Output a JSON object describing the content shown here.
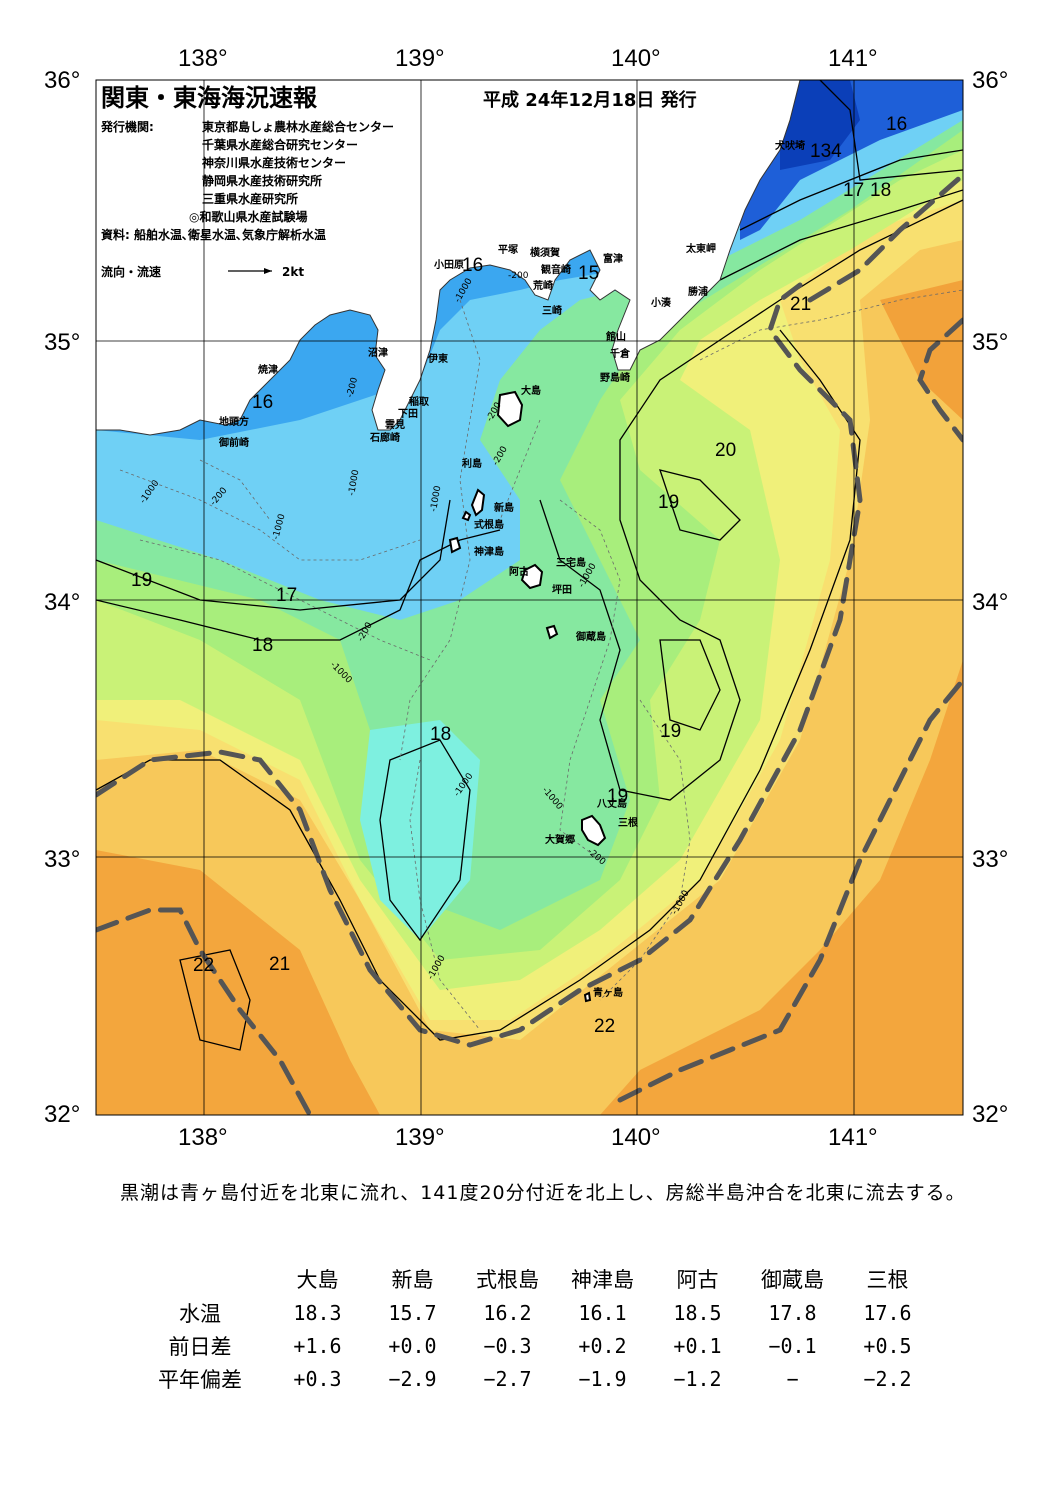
{
  "map": {
    "title": "関東・東海海況速報",
    "issue_date": "平成 24年12月18日 発行",
    "issuer_label": "発行機関:",
    "issuers": [
      "東京都島しょ農林水産総合センター",
      "千葉県水産総合研究センター",
      "神奈川県水産技術センター",
      "静岡県水産技術研究所",
      "三重県水産研究所",
      "◎和歌山県水産試験場"
    ],
    "source": "資料: 船舶水温､衛星水温､気象庁解析水温",
    "legend_label": "流向・流速",
    "legend_scale": "2kt",
    "longitude_labels": [
      "138°",
      "139°",
      "140°",
      "141°"
    ],
    "latitude_labels": [
      "36°",
      "35°",
      "34°",
      "33°",
      "32°"
    ],
    "isotherm_labels": [
      "16",
      "134",
      "17",
      "18",
      "16",
      "15",
      "21",
      "20",
      "19",
      "19",
      "17",
      "18",
      "18",
      "19",
      "19",
      "22",
      "21",
      "22",
      "16"
    ],
    "depth_labels": [
      "-1000",
      "-200",
      "-200",
      "-1000",
      "-200",
      "-1000",
      "-1000",
      "-200",
      "-1000",
      "-200",
      "-1000",
      "-200",
      "-1000",
      "-1000",
      "-200",
      "-1000",
      "-1000",
      "-1000"
    ],
    "places": {
      "inubozaki": "犬吠埼",
      "taitomisaki": "太東岬",
      "katsuura": "勝浦",
      "kominato": "小湊",
      "tomitsu": "富津",
      "kannonzaki": "観音崎",
      "yokosuka": "横須賀",
      "hiratsuka": "平塚",
      "odawara": "小田原",
      "arasaki": "荒崎",
      "misaki": "三崎",
      "tateyama": "館山",
      "chikura": "千倉",
      "nojimazaki": "野島崎",
      "numazu": "沼津",
      "ito": "伊東",
      "inatori": "稲取",
      "shimoda": "下田",
      "kumomi": "雲見",
      "irozaki": "石廊崎",
      "yaizu": "焼津",
      "jitokata": "地頭方",
      "omaezaki": "御前崎",
      "oshima": "大島",
      "toshima": "利島",
      "niijima": "新島",
      "shikinejima": "式根島",
      "kozushima": "神津島",
      "miyakejima": "三宅島",
      "ako": "阿古",
      "tsubota": "坪田",
      "mikurajima": "御蔵島",
      "hachijojima": "八丈島",
      "mitsune": "三根",
      "okago": "大賀郷",
      "aogashima": "青ヶ島"
    }
  },
  "summary": "黒潮は青ヶ島付近を北東に流れ、141度20分付近を北上し、房総半島沖合を北東に流去する。",
  "table": {
    "columns": [
      "大島",
      "新島",
      "式根島",
      "神津島",
      "阿古",
      "御蔵島",
      "三根"
    ],
    "rows": [
      {
        "label": "水温",
        "values": [
          "18.3",
          "15.7",
          "16.2",
          "16.1",
          "18.5",
          "17.8",
          "17.6"
        ]
      },
      {
        "label": "前日差",
        "values": [
          "+1.6",
          "+0.0",
          "−0.3",
          "+0.2",
          "+0.1",
          "−0.1",
          "+0.5"
        ]
      },
      {
        "label": "平年偏差",
        "values": [
          "+0.3",
          "−2.9",
          "−2.7",
          "−1.9",
          "−1.2",
          "−",
          "−2.2"
        ]
      }
    ]
  },
  "colors": {
    "t_cold": "#1e5fd8",
    "t_16": "#3ba7f0",
    "t_17": "#6fd0f5",
    "t_17b": "#7ef0e0",
    "t_18": "#86e8a0",
    "t_18b": "#a8ee7c",
    "t_19": "#c9f277",
    "t_20": "#f0f07a",
    "t_20b": "#f8e070",
    "t_21": "#f7c85a",
    "t_22": "#f2a23a",
    "kuroshio_axis": "#555555"
  }
}
